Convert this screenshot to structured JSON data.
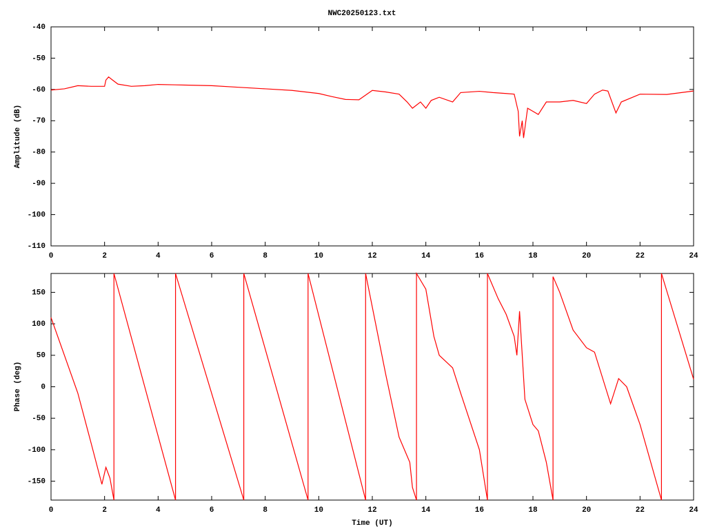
{
  "chart_data": [
    {
      "type": "line",
      "title": "NWC20250123.txt",
      "y_label": "Amplitude (dB)",
      "x": [
        0,
        0.5,
        1,
        1.5,
        2,
        2.05,
        2.15,
        2.3,
        2.5,
        3,
        3.5,
        4,
        5,
        6,
        7,
        8,
        9,
        10,
        10.5,
        11,
        11.5,
        12,
        12.5,
        13,
        13.3,
        13.5,
        13.8,
        14,
        14.2,
        14.5,
        15,
        15.3,
        16,
        16.5,
        17,
        17.3,
        17.45,
        17.5,
        17.6,
        17.65,
        17.8,
        18,
        18.2,
        18.5,
        19,
        19.5,
        20,
        20.3,
        20.6,
        20.8,
        21.1,
        21.3,
        22,
        23,
        24
      ],
      "series": [
        {
          "color": "#ff0000",
          "values": [
            -60.2,
            -59.8,
            -58.8,
            -59,
            -59,
            -57,
            -56,
            -57,
            -58.3,
            -59,
            -58.8,
            -58.4,
            -58.6,
            -58.8,
            -59.3,
            -59.8,
            -60.3,
            -61.3,
            -62.3,
            -63.2,
            -63.3,
            -60.3,
            -60.8,
            -61.5,
            -64,
            -66,
            -64,
            -66,
            -63.5,
            -62.5,
            -64,
            -61,
            -60.6,
            -61,
            -61.3,
            -61.5,
            -67,
            -75,
            -70,
            -75.5,
            -66,
            -67,
            -68,
            -64,
            -64,
            -63.5,
            -64.5,
            -61.5,
            -60.2,
            -60.5,
            -67.5,
            -64,
            -61.5,
            -61.6,
            -60.5
          ]
        }
      ],
      "xlim": [
        0,
        24
      ],
      "xticks": [
        0,
        2,
        4,
        6,
        8,
        10,
        12,
        14,
        16,
        18,
        20,
        22,
        24
      ],
      "ylim": [
        -110,
        -40
      ],
      "yticks": [
        -110,
        -100,
        -90,
        -80,
        -70,
        -60,
        -50,
        -40
      ]
    },
    {
      "type": "line",
      "y_label": "Phase (deg)",
      "x_label": "Time (UT)",
      "x": [
        0,
        0.5,
        1,
        1.5,
        1.9,
        2.05,
        2.2,
        2.35,
        2.35,
        4.65,
        4.65,
        7.2,
        7.2,
        9.6,
        9.6,
        11.75,
        11.75,
        12.5,
        13,
        13.4,
        13.5,
        13.65,
        13.65,
        14,
        14.3,
        14.5,
        15,
        15.3,
        16,
        16.3,
        16.3,
        16.7,
        17,
        17.3,
        17.4,
        17.5,
        17.6,
        17.7,
        18,
        18.2,
        18.5,
        18.75,
        18.75,
        19,
        19.5,
        20,
        20.3,
        20.9,
        21.2,
        21.5,
        22,
        22.8,
        22.8,
        24
      ],
      "series": [
        {
          "color": "#ff0000",
          "values": [
            110,
            50,
            -10,
            -90,
            -155,
            -128,
            -145,
            -180,
            180,
            -180,
            180,
            -180,
            180,
            -180,
            180,
            -180,
            180,
            20,
            -80,
            -120,
            -160,
            -180,
            180,
            155,
            80,
            50,
            30,
            -10,
            -100,
            -180,
            180,
            140,
            115,
            80,
            50,
            120,
            50,
            -20,
            -60,
            -70,
            -120,
            -180,
            175,
            150,
            90,
            62,
            55,
            -27,
            13,
            0,
            -60,
            -180,
            180,
            12
          ]
        }
      ],
      "xlim": [
        0,
        24
      ],
      "xticks": [
        0,
        2,
        4,
        6,
        8,
        10,
        12,
        14,
        16,
        18,
        20,
        22,
        24
      ],
      "ylim": [
        -180,
        180
      ],
      "yticks": [
        -150,
        -100,
        -50,
        0,
        50,
        100,
        150
      ]
    }
  ]
}
